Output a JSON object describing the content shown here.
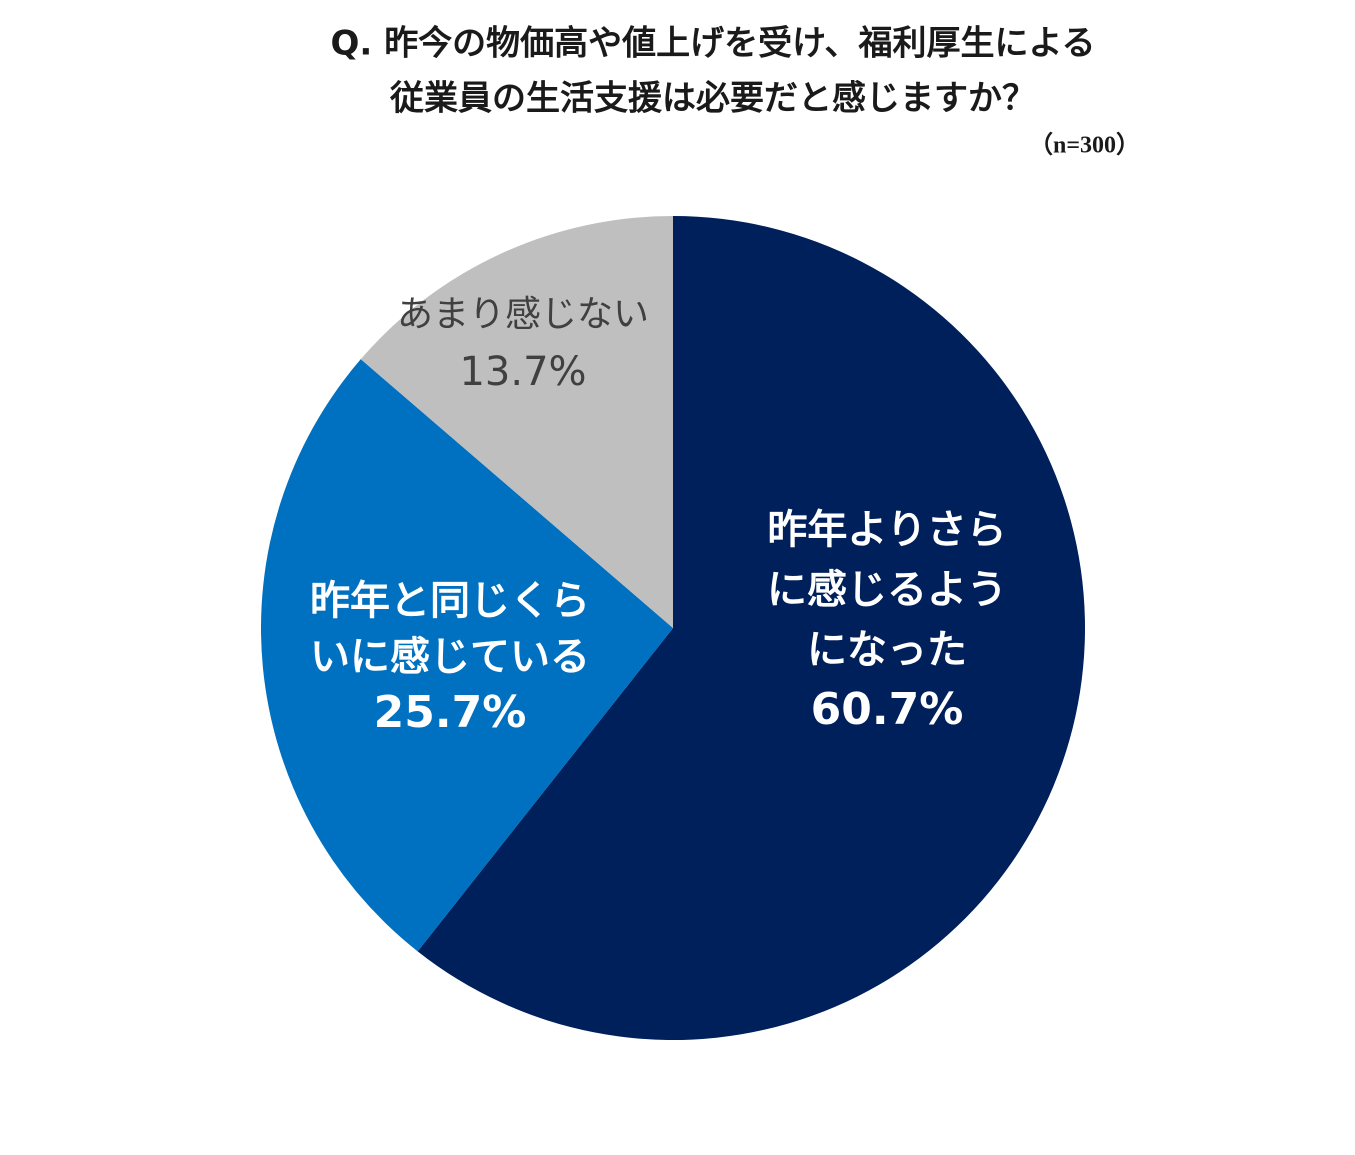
{
  "chart_data": {
    "type": "pie",
    "title": [
      "Q. 昨今の物価高や値上げを受け、福利厚生による",
      "従業員の生活支援は必要だと感じますか？"
    ],
    "subtitle": "（n=300）",
    "categories": [
      [
        "昨年よりさら",
        "に感じるよう",
        "になった"
      ],
      [
        "昨年と同じくら",
        "いに感じている"
      ],
      [
        "あまり感じない"
      ]
    ],
    "values": [
      60.7,
      25.7,
      13.7
    ],
    "value_labels": [
      "60.7%",
      "25.7%",
      "13.7%"
    ],
    "colors": [
      "#00205b",
      "#0070c0",
      "#bfbfbf"
    ],
    "label_colors": [
      "#ffffff",
      "#ffffff",
      "#404040"
    ]
  }
}
